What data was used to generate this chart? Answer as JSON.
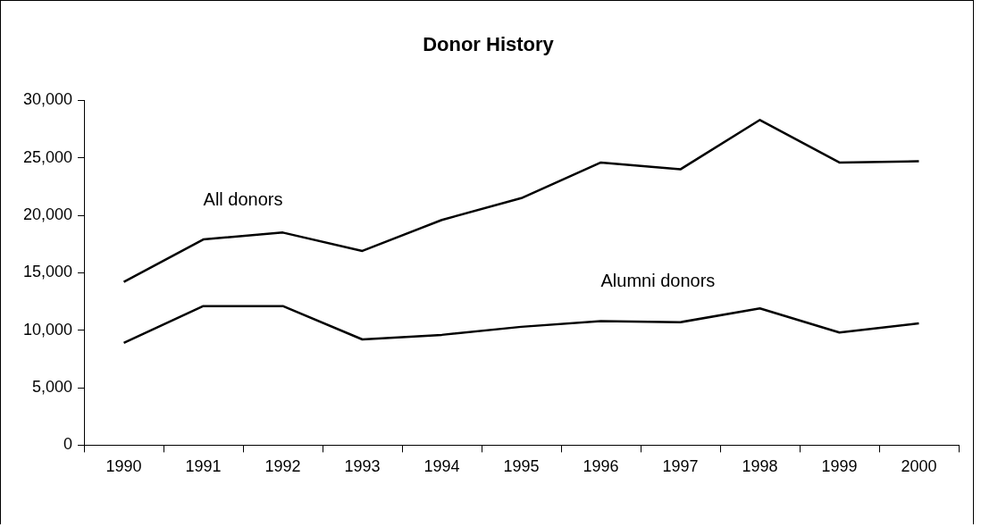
{
  "chart_data": {
    "type": "line",
    "title": "Donor History",
    "categories": [
      "1990",
      "1991",
      "1992",
      "1993",
      "1994",
      "1995",
      "1996",
      "1997",
      "1998",
      "1999",
      "2000"
    ],
    "series": [
      {
        "name": "All donors",
        "color": "#000000",
        "values": [
          14200,
          17900,
          18500,
          16900,
          19600,
          21500,
          24600,
          24000,
          28300,
          24600,
          24700
        ]
      },
      {
        "name": "Alumni donors",
        "color": "#000000",
        "values": [
          8900,
          12100,
          12100,
          9200,
          9600,
          10300,
          10800,
          10700,
          11900,
          9800,
          10600
        ]
      }
    ],
    "ylim": [
      0,
      30000
    ],
    "yticks": [
      {
        "value": 0,
        "label": "0"
      },
      {
        "value": 5000,
        "label": "5,000"
      },
      {
        "value": 10000,
        "label": "10,000"
      },
      {
        "value": 15000,
        "label": "15,000"
      },
      {
        "value": 20000,
        "label": "20,000"
      },
      {
        "value": 25000,
        "label": "25,000"
      },
      {
        "value": 30000,
        "label": "30,000"
      }
    ],
    "marker": "none",
    "line_style": "solid",
    "legend": false
  }
}
